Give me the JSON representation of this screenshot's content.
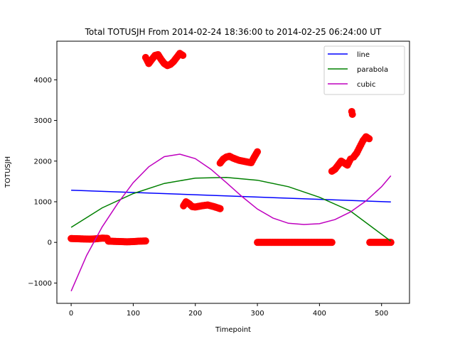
{
  "chart_data": {
    "type": "scatter",
    "title": "Total TOTUSJH From 2014-02-24 18:36:00 to 2014-02-25 06:24:00 UT",
    "xlabel": "Timepoint",
    "ylabel": "TOTUSJH",
    "xlim": [
      -23,
      545
    ],
    "ylim": [
      -1500,
      4950
    ],
    "xticks": [
      0,
      100,
      200,
      300,
      400,
      500
    ],
    "yticks": [
      -1000,
      0,
      1000,
      2000,
      3000,
      4000
    ],
    "grid": false,
    "legend_position": "top-right",
    "scatter": {
      "color": "#ff0000",
      "segments": [
        {
          "x_start": 0,
          "x_end": 58,
          "points": [
            [
              0,
              95
            ],
            [
              10,
              90
            ],
            [
              20,
              85
            ],
            [
              30,
              80
            ],
            [
              40,
              88
            ],
            [
              50,
              105
            ],
            [
              58,
              100
            ]
          ]
        },
        {
          "x_start": 59,
          "x_end": 120,
          "points": [
            [
              60,
              30
            ],
            [
              70,
              25
            ],
            [
              80,
              20
            ],
            [
              90,
              15
            ],
            [
              100,
              20
            ],
            [
              110,
              30
            ],
            [
              120,
              35
            ]
          ]
        },
        {
          "x_start": 120,
          "x_end": 180,
          "points": [
            [
              120,
              4550
            ],
            [
              125,
              4400
            ],
            [
              130,
              4500
            ],
            [
              135,
              4600
            ],
            [
              140,
              4620
            ],
            [
              145,
              4500
            ],
            [
              150,
              4400
            ],
            [
              155,
              4350
            ],
            [
              160,
              4380
            ],
            [
              165,
              4450
            ],
            [
              170,
              4550
            ],
            [
              175,
              4650
            ],
            [
              180,
              4600
            ]
          ]
        },
        {
          "x_start": 181,
          "x_end": 240,
          "points": [
            [
              181,
              900
            ],
            [
              185,
              1000
            ],
            [
              190,
              950
            ],
            [
              195,
              880
            ],
            [
              200,
              870
            ],
            [
              210,
              900
            ],
            [
              220,
              920
            ],
            [
              230,
              880
            ],
            [
              240,
              830
            ]
          ]
        },
        {
          "x_start": 240,
          "x_end": 300,
          "points": [
            [
              240,
              1950
            ],
            [
              245,
              2050
            ],
            [
              250,
              2100
            ],
            [
              255,
              2120
            ],
            [
              260,
              2080
            ],
            [
              270,
              2020
            ],
            [
              280,
              1990
            ],
            [
              290,
              1960
            ],
            [
              295,
              2100
            ],
            [
              300,
              2230
            ]
          ]
        },
        {
          "x_start": 300,
          "x_end": 420,
          "points": [
            [
              300,
              0
            ],
            [
              320,
              0
            ],
            [
              340,
              0
            ],
            [
              360,
              0
            ],
            [
              380,
              0
            ],
            [
              400,
              0
            ],
            [
              420,
              0
            ]
          ]
        },
        {
          "x_start": 420,
          "x_end": 480,
          "points": [
            [
              420,
              1750
            ],
            [
              425,
              1800
            ],
            [
              430,
              1900
            ],
            [
              435,
              2000
            ],
            [
              440,
              1950
            ],
            [
              445,
              1900
            ],
            [
              450,
              2050
            ],
            [
              455,
              2100
            ],
            [
              460,
              2200
            ],
            [
              465,
              2350
            ],
            [
              470,
              2500
            ],
            [
              475,
              2600
            ],
            [
              480,
              2550
            ],
            [
              452,
              3220
            ],
            [
              453,
              3150
            ]
          ]
        },
        {
          "x_start": 481,
          "x_end": 515,
          "points": [
            [
              481,
              0
            ],
            [
              490,
              0
            ],
            [
              500,
              0
            ],
            [
              510,
              0
            ],
            [
              515,
              0
            ]
          ]
        }
      ]
    },
    "series": [
      {
        "name": "line",
        "color": "#0000ff",
        "x": [
          0,
          515
        ],
        "y": [
          1285,
          995
        ]
      },
      {
        "name": "parabola",
        "color": "#008000",
        "x": [
          0,
          50,
          100,
          150,
          200,
          250,
          300,
          350,
          400,
          450,
          515
        ],
        "y": [
          370,
          850,
          1200,
          1450,
          1580,
          1600,
          1530,
          1370,
          1110,
          770,
          30
        ]
      },
      {
        "name": "cubic",
        "color": "#bf00bf",
        "x": [
          0,
          25,
          50,
          75,
          100,
          125,
          150,
          175,
          200,
          225,
          250,
          275,
          300,
          325,
          350,
          375,
          400,
          425,
          450,
          475,
          500,
          515
        ],
        "y": [
          -1200,
          -320,
          380,
          960,
          1470,
          1860,
          2110,
          2170,
          2060,
          1800,
          1470,
          1130,
          820,
          600,
          470,
          440,
          460,
          560,
          750,
          1020,
          1370,
          1640
        ]
      }
    ]
  }
}
